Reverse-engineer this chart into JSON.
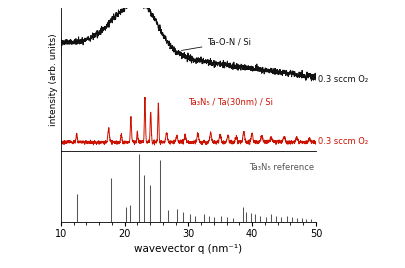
{
  "xlim": [
    10,
    50
  ],
  "xlabel": "wavevector q (nm⁻¹)",
  "ylabel": "intensity (arb. units)",
  "black_label": "Ta-O-N / Si",
  "red_label": "Ta₃N₅ / Ta(30nm) / Si",
  "black_annot": "0.3 sccm O₂",
  "red_annot": "0.3 sccm O₂",
  "ref_label": "Ta₃N₅ reference",
  "black_color": "#111111",
  "red_color": "#cc1100",
  "ref_color": "#555555",
  "ref_peaks": [
    12.5,
    17.8,
    20.3,
    20.9,
    22.2,
    23.1,
    24.0,
    25.5,
    26.8,
    28.3,
    29.1,
    30.2,
    31.0,
    32.5,
    33.2,
    34.0,
    35.2,
    36.1,
    37.0,
    38.5,
    39.1,
    39.8,
    40.5,
    41.2,
    42.1,
    43.0,
    43.8,
    44.6,
    45.5,
    46.2,
    47.0,
    47.8,
    48.5,
    49.2
  ],
  "ref_heights": [
    0.42,
    0.65,
    0.22,
    0.25,
    1.0,
    0.7,
    0.55,
    0.92,
    0.18,
    0.2,
    0.16,
    0.12,
    0.1,
    0.12,
    0.09,
    0.08,
    0.1,
    0.08,
    0.07,
    0.22,
    0.16,
    0.14,
    0.12,
    0.1,
    0.08,
    0.12,
    0.09,
    0.08,
    0.1,
    0.08,
    0.07,
    0.06,
    0.05,
    0.05
  ]
}
